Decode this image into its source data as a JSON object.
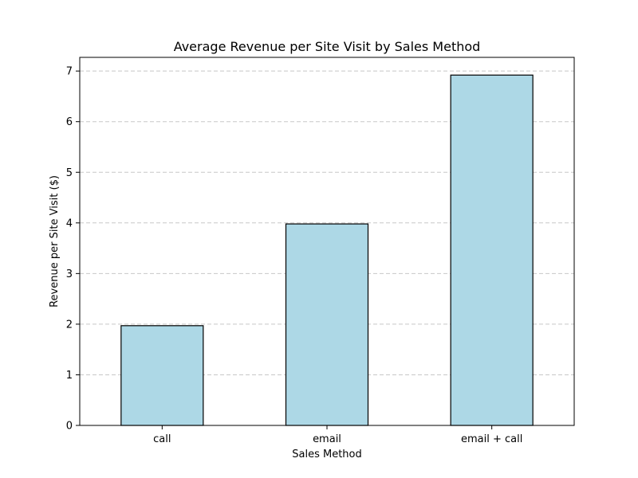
{
  "chart_data": {
    "type": "bar",
    "title": "Average Revenue per Site Visit by Sales Method",
    "xlabel": "Sales Method",
    "ylabel": "Revenue per Site Visit ($)",
    "categories": [
      "call",
      "email",
      "email + call"
    ],
    "values": [
      1.97,
      3.98,
      6.92
    ],
    "ylim": [
      0,
      7.27
    ],
    "yticks": [
      0,
      1,
      2,
      3,
      4,
      5,
      6,
      7
    ],
    "grid": "y-dashed",
    "bar_color": "#add8e6",
    "bar_edge_color": "#000000"
  }
}
